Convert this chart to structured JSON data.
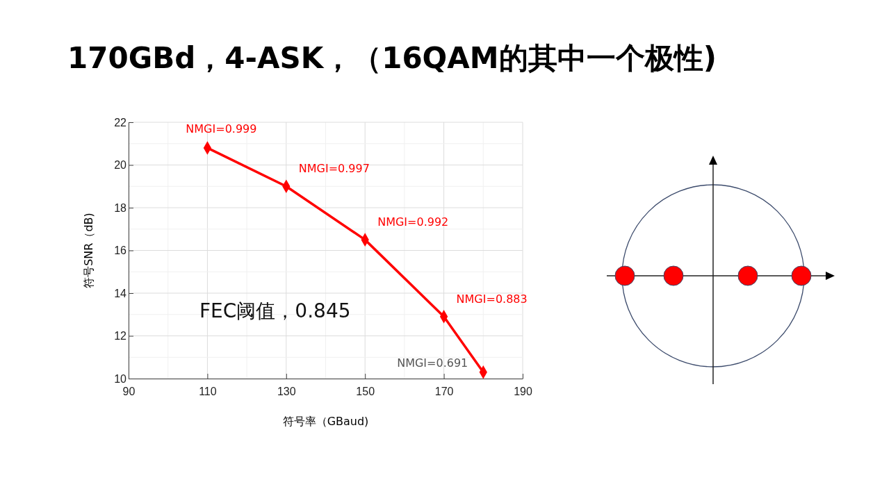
{
  "chart_data": {
    "type": "line",
    "title": "170GBd，4-ASK，（16QAM的其中一个极性)",
    "xlabel": "符号率（GBaud)",
    "ylabel": "符号SNR（dB)",
    "x": [
      110,
      130,
      150,
      170,
      180
    ],
    "series": [
      {
        "color": "#ff0000",
        "values": [
          20.8,
          19.0,
          16.5,
          12.9,
          10.3
        ]
      }
    ],
    "xlim": [
      90,
      190
    ],
    "xticks": [
      90,
      110,
      130,
      150,
      170,
      190
    ],
    "ylim": [
      10,
      22
    ],
    "yticks": [
      10,
      12,
      14,
      16,
      18,
      20,
      22
    ],
    "grid": true,
    "marker": "diamond",
    "line_style": "solid",
    "annotations": [
      {
        "text": "NMGI=0.999",
        "x": 110,
        "y": 20.8
      },
      {
        "text": "NMGI=0.997",
        "x": 130,
        "y": 19.0
      },
      {
        "text": "NMGI=0.992",
        "x": 150,
        "y": 16.5
      },
      {
        "text": "NMGI=0.883",
        "x": 170,
        "y": 12.9
      },
      {
        "text": "NMGI=0.691",
        "x": 180,
        "y": 10.3
      },
      "FEC阈值，0.845"
    ]
  }
}
